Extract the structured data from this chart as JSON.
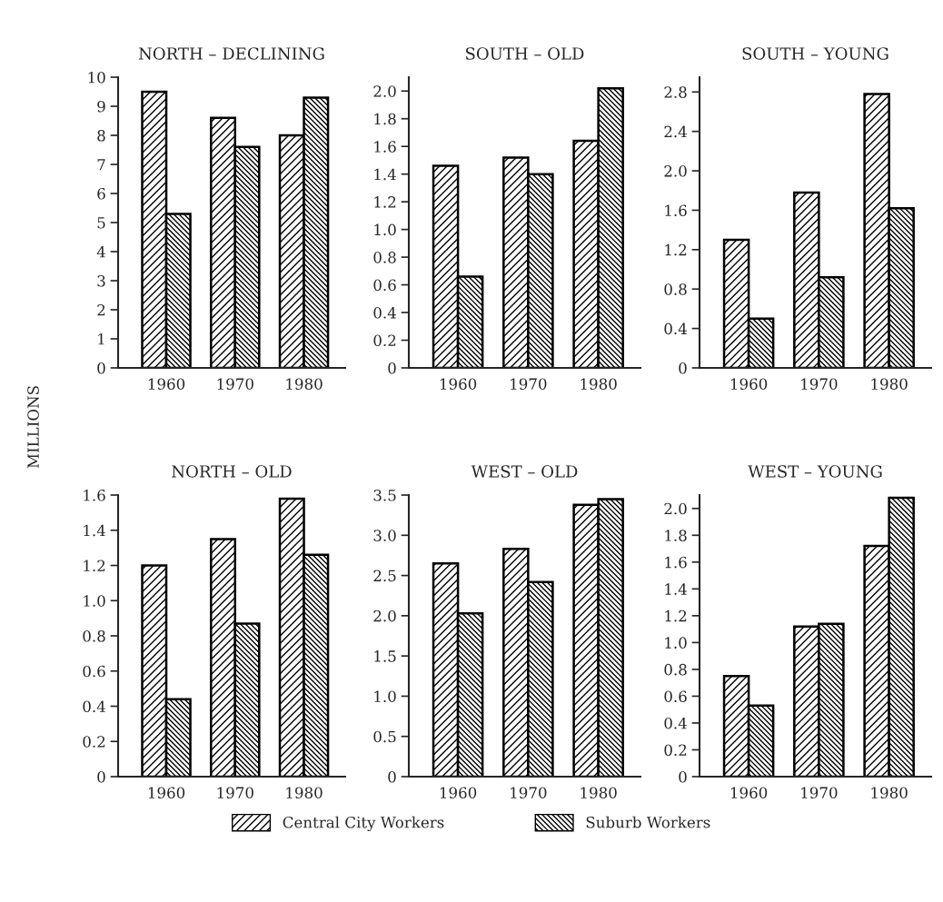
{
  "chart_data": [
    {
      "type": "bar",
      "title": "NORTH – DECLINING",
      "ylabel": "MILLIONS",
      "categories": [
        "1960",
        "1970",
        "1980"
      ],
      "legend": "bottom",
      "series": [
        {
          "name": "Central City Workers",
          "color": "#000000",
          "values": [
            9.5,
            8.6,
            8.0
          ]
        },
        {
          "name": "Suburb Workers",
          "color": "#000000",
          "values": [
            5.3,
            7.6,
            9.3
          ]
        }
      ],
      "ylim": [
        0,
        10
      ],
      "yticks": [
        0,
        1,
        2,
        3,
        4,
        5,
        6,
        7,
        8,
        9,
        10
      ],
      "grid": false
    },
    {
      "type": "bar",
      "title": "SOUTH – OLD",
      "categories": [
        "1960",
        "1970",
        "1980"
      ],
      "series": [
        {
          "color": "#000000",
          "values": [
            1.46,
            1.52,
            1.64
          ]
        },
        {
          "color": "#000000",
          "values": [
            0.66,
            1.4,
            2.02
          ]
        }
      ],
      "ylim": [
        0,
        2.1
      ],
      "yticks": [
        0,
        0.2,
        0.4,
        0.6,
        0.8,
        {
          "value": 1,
          "label": "1.0"
        },
        1.2,
        1.4,
        1.6,
        1.8,
        {
          "value": 2,
          "label": "2.0"
        }
      ],
      "grid": false
    },
    {
      "type": "bar",
      "title": "SOUTH – YOUNG",
      "categories": [
        "1960",
        "1970",
        "1980"
      ],
      "series": [
        {
          "color": "#000000",
          "values": [
            1.3,
            1.78,
            2.78
          ]
        },
        {
          "color": "#000000",
          "values": [
            0.5,
            0.92,
            1.62
          ]
        }
      ],
      "ylim": [
        0,
        2.95
      ],
      "yticks": [
        0,
        0.4,
        0.8,
        1.2,
        1.6,
        {
          "value": 2,
          "label": "2.0"
        },
        2.4,
        2.8
      ],
      "grid": false
    },
    {
      "type": "bar",
      "title": "NORTH – OLD",
      "categories": [
        "1960",
        "1970",
        "1980"
      ],
      "series": [
        {
          "color": "#000000",
          "values": [
            1.2,
            1.35,
            1.58
          ]
        },
        {
          "color": "#000000",
          "values": [
            0.44,
            0.87,
            1.26
          ]
        }
      ],
      "ylim": [
        0,
        1.6
      ],
      "yticks": [
        0,
        0.2,
        0.4,
        0.6,
        0.8,
        {
          "value": 1,
          "label": "1.0"
        },
        1.2,
        1.4,
        1.6
      ],
      "grid": false
    },
    {
      "type": "bar",
      "title": "WEST – OLD",
      "categories": [
        "1960",
        "1970",
        "1980"
      ],
      "series": [
        {
          "color": "#000000",
          "values": [
            2.65,
            2.83,
            3.38
          ]
        },
        {
          "color": "#000000",
          "values": [
            2.03,
            2.42,
            3.45
          ]
        }
      ],
      "ylim": [
        0,
        3.5
      ],
      "yticks": [
        0,
        0.5,
        {
          "value": 1,
          "label": "1.0"
        },
        1.5,
        {
          "value": 2,
          "label": "2.0"
        },
        2.5,
        {
          "value": 3,
          "label": "3.0"
        },
        3.5
      ],
      "grid": false
    },
    {
      "type": "bar",
      "title": "WEST – YOUNG",
      "categories": [
        "1960",
        "1970",
        "1980"
      ],
      "series": [
        {
          "color": "#000000",
          "values": [
            0.75,
            1.12,
            1.72
          ]
        },
        {
          "color": "#000000",
          "values": [
            0.53,
            1.14,
            2.08
          ]
        }
      ],
      "ylim": [
        0,
        2.1
      ],
      "yticks": [
        0,
        0.2,
        0.4,
        0.6,
        0.8,
        {
          "value": 1,
          "label": "1.0"
        },
        1.2,
        1.4,
        1.6,
        1.8,
        {
          "value": 2,
          "label": "2.0"
        }
      ],
      "grid": false
    }
  ]
}
